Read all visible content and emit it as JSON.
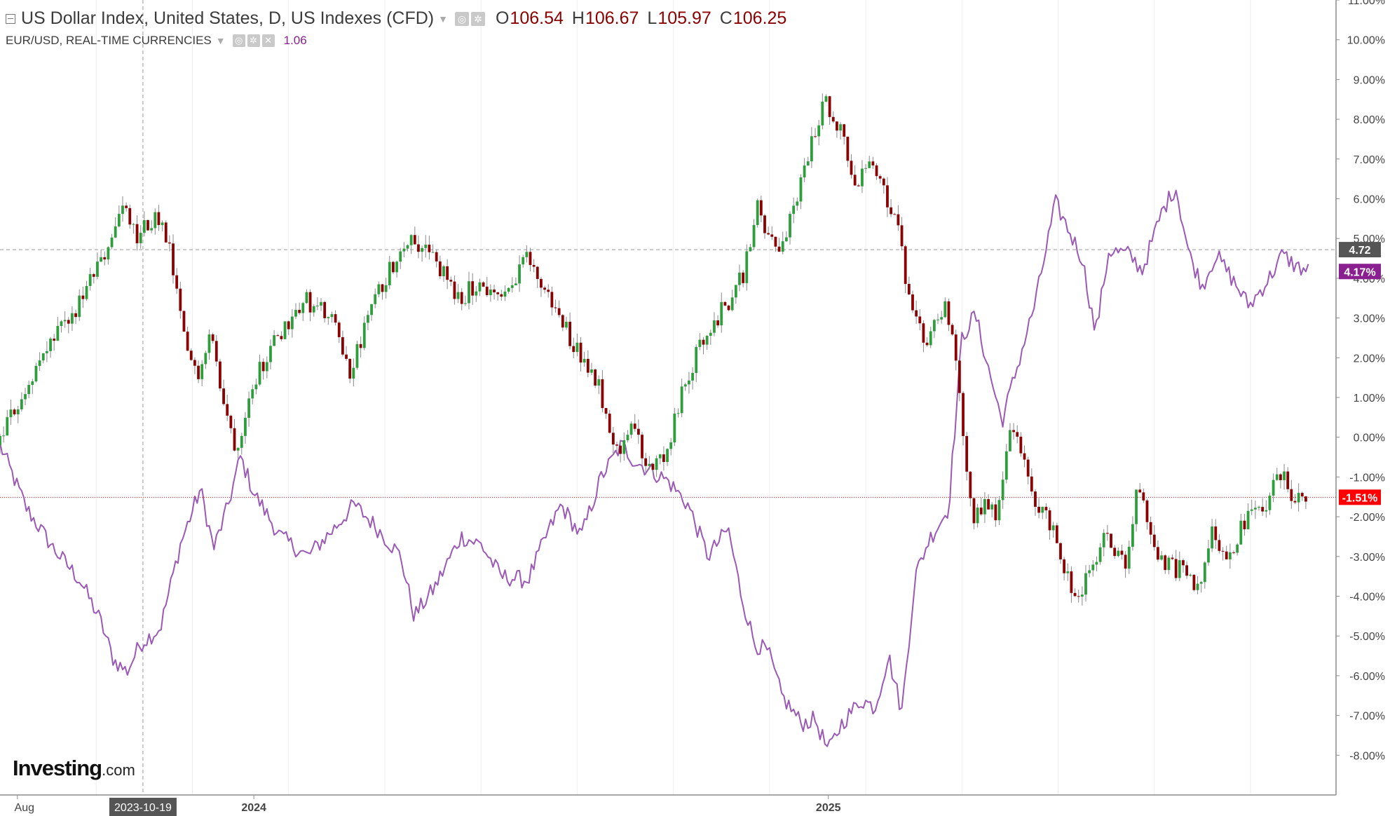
{
  "legend": {
    "main_title": "US Dollar Index, United States, D, US Indexes (CFD)",
    "ohlc": [
      {
        "label": "O",
        "value": "106.54"
      },
      {
        "label": "H",
        "value": "106.67"
      },
      {
        "label": "L",
        "value": "105.97"
      },
      {
        "label": "C",
        "value": "106.25"
      }
    ],
    "sub_title": "EUR/USD, REAL-TIME CURRENCIES",
    "sub_value": "1.06",
    "icons": [
      "settings-icon",
      "gear-icon",
      "close-icon"
    ]
  },
  "logo": {
    "brand": "Investing",
    "suffix": ".com"
  },
  "colors": {
    "up": "#2e9e3c",
    "down": "#8b0000",
    "eurusd_line": "#9b59b6",
    "dxy_badge": "#ff0000",
    "dxy_line_badge": "#555555",
    "eur_badge": "#8a1f8f"
  },
  "chart_data": {
    "type": "line",
    "title": "US Dollar Index, United States, D, US Indexes (CFD)",
    "y_axis": {
      "unit": "%",
      "range": [
        -9,
        11
      ],
      "ticks": [
        "11.00%",
        "10.00%",
        "9.00%",
        "8.00%",
        "7.00%",
        "6.00%",
        "5.00%",
        "4.00%",
        "3.00%",
        "2.00%",
        "1.00%",
        "0.00%",
        "-1.00%",
        "-2.00%",
        "-3.00%",
        "-4.00%",
        "-5.00%",
        "-6.00%",
        "-7.00%",
        "-8.00%"
      ],
      "tick_values": [
        11,
        10,
        9,
        8,
        7,
        6,
        5,
        4,
        3,
        2,
        1,
        0,
        -1,
        -2,
        -3,
        -4,
        -5,
        -6,
        -7,
        -8
      ]
    },
    "x_axis": {
      "range": [
        0,
        100
      ],
      "labels": [
        {
          "text": "Aug",
          "t": 1.3
        },
        {
          "text": "2024",
          "t": 19.0
        },
        {
          "text": "2025",
          "t": 62.0
        }
      ],
      "highlight_label": {
        "text": "2023-10-19",
        "t": 10.7
      }
    },
    "crosshair": {
      "t": 10.7,
      "y": 4.72
    },
    "badges": [
      {
        "text": "4.72",
        "y": 4.72,
        "kind": "crosshair"
      },
      {
        "text": "4.17%",
        "y": 4.17,
        "kind": "eurusd"
      },
      {
        "text": "-1.51%",
        "y": -1.51,
        "kind": "dxy"
      }
    ],
    "series": [
      {
        "name": "US Dollar Index",
        "kind": "candlestick",
        "points": [
          [
            0,
            -0.2
          ],
          [
            2,
            1.1
          ],
          [
            4,
            2.3
          ],
          [
            6,
            3.2
          ],
          [
            8,
            4.5
          ],
          [
            9.5,
            5.8
          ],
          [
            10.5,
            5.0
          ],
          [
            12,
            5.6
          ],
          [
            13,
            4.6
          ],
          [
            14,
            2.5
          ],
          [
            15,
            1.5
          ],
          [
            16,
            2.8
          ],
          [
            17,
            0.8
          ],
          [
            18,
            -0.3
          ],
          [
            19,
            1.3
          ],
          [
            21,
            2.5
          ],
          [
            23,
            3.5
          ],
          [
            25,
            3.0
          ],
          [
            26.5,
            1.6
          ],
          [
            28,
            3.2
          ],
          [
            30,
            4.6
          ],
          [
            31,
            5.1
          ],
          [
            33,
            4.4
          ],
          [
            34.5,
            3.4
          ],
          [
            36,
            3.9
          ],
          [
            38,
            3.4
          ],
          [
            39.5,
            4.6
          ],
          [
            41,
            3.7
          ],
          [
            42,
            3.1
          ],
          [
            43.5,
            2.2
          ],
          [
            45,
            1.4
          ],
          [
            46.5,
            -0.4
          ],
          [
            47.5,
            0.5
          ],
          [
            48.5,
            -0.7
          ],
          [
            50,
            -0.6
          ],
          [
            51.5,
            1.3
          ],
          [
            53,
            2.6
          ],
          [
            55,
            3.5
          ],
          [
            56,
            4.2
          ],
          [
            57,
            5.8
          ],
          [
            58.2,
            4.7
          ],
          [
            59,
            4.9
          ],
          [
            60.5,
            6.8
          ],
          [
            62,
            8.5
          ],
          [
            63,
            7.9
          ],
          [
            64.5,
            6.3
          ],
          [
            65.5,
            7.1
          ],
          [
            66.5,
            6.2
          ],
          [
            67.5,
            5.2
          ],
          [
            68.5,
            3.0
          ],
          [
            69.5,
            2.4
          ],
          [
            71,
            3.4
          ],
          [
            72,
            1.5
          ],
          [
            73,
            -2.0
          ],
          [
            74,
            -1.7
          ],
          [
            75,
            -1.9
          ],
          [
            76,
            0.5
          ],
          [
            77.5,
            -1.5
          ],
          [
            79,
            -2.2
          ],
          [
            80,
            -3.4
          ],
          [
            81,
            -4.1
          ],
          [
            83,
            -2.5
          ],
          [
            84.5,
            -3.2
          ],
          [
            85.5,
            -1.2
          ],
          [
            87,
            -3.1
          ],
          [
            89,
            -3.4
          ],
          [
            90,
            -3.9
          ],
          [
            91,
            -2.1
          ],
          [
            92,
            -3.1
          ],
          [
            93.5,
            -2.1
          ],
          [
            95,
            -1.7
          ],
          [
            96,
            -0.9
          ],
          [
            97,
            -1.4
          ],
          [
            98,
            -1.51
          ]
        ]
      },
      {
        "name": "EUR/USD",
        "kind": "line",
        "points": [
          [
            0,
            -0.2
          ],
          [
            2,
            -1.8
          ],
          [
            4,
            -2.8
          ],
          [
            6,
            -3.6
          ],
          [
            7.5,
            -4.6
          ],
          [
            8.5,
            -5.6
          ],
          [
            9.5,
            -5.9
          ],
          [
            10.5,
            -5.2
          ],
          [
            12,
            -4.8
          ],
          [
            13.5,
            -2.7
          ],
          [
            15,
            -1.3
          ],
          [
            16,
            -2.8
          ],
          [
            17,
            -1.8
          ],
          [
            18,
            -0.5
          ],
          [
            19,
            -1.4
          ],
          [
            21,
            -2.5
          ],
          [
            23,
            -3.0
          ],
          [
            25,
            -2.3
          ],
          [
            26.5,
            -1.7
          ],
          [
            28,
            -2.2
          ],
          [
            30,
            -3.0
          ],
          [
            31,
            -4.5
          ],
          [
            32.5,
            -3.8
          ],
          [
            34.5,
            -2.5
          ],
          [
            36,
            -2.7
          ],
          [
            37.5,
            -3.5
          ],
          [
            39.5,
            -3.6
          ],
          [
            41,
            -2.4
          ],
          [
            42,
            -1.7
          ],
          [
            43.5,
            -2.5
          ],
          [
            45,
            -1.0
          ],
          [
            46.5,
            -0.2
          ],
          [
            47.5,
            -0.6
          ],
          [
            48.5,
            -0.8
          ],
          [
            50,
            -1.1
          ],
          [
            51.5,
            -1.7
          ],
          [
            53,
            -3.0
          ],
          [
            54.5,
            -2.3
          ],
          [
            55.5,
            -4.0
          ],
          [
            56.5,
            -5.2
          ],
          [
            57.5,
            -5.4
          ],
          [
            58.5,
            -6.5
          ],
          [
            60,
            -7.2
          ],
          [
            61,
            -7.1
          ],
          [
            62,
            -7.9
          ],
          [
            63,
            -7.2
          ],
          [
            64.5,
            -6.6
          ],
          [
            65.5,
            -6.8
          ],
          [
            66.5,
            -5.5
          ],
          [
            67.5,
            -6.9
          ],
          [
            68.5,
            -3.5
          ],
          [
            69.5,
            -2.6
          ],
          [
            71,
            -1.8
          ],
          [
            72,
            2.5
          ],
          [
            73,
            3.1
          ],
          [
            74,
            1.7
          ],
          [
            75,
            0.4
          ],
          [
            76,
            1.6
          ],
          [
            77.5,
            3.4
          ],
          [
            79,
            5.9
          ],
          [
            80,
            5.2
          ],
          [
            81,
            4.5
          ],
          [
            82,
            2.6
          ],
          [
            83,
            4.7
          ],
          [
            84.5,
            4.6
          ],
          [
            85.5,
            4.2
          ],
          [
            87,
            5.7
          ],
          [
            88,
            6.3
          ],
          [
            89,
            4.6
          ],
          [
            90,
            3.8
          ],
          [
            91,
            4.6
          ],
          [
            92,
            4.1
          ],
          [
            93.5,
            3.3
          ],
          [
            95,
            4.0
          ],
          [
            96,
            4.6
          ],
          [
            97,
            4.3
          ],
          [
            98,
            4.17
          ]
        ]
      }
    ]
  }
}
